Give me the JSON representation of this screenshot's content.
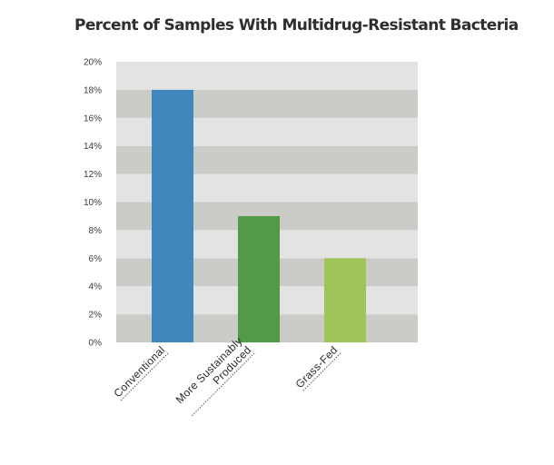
{
  "chart_data": {
    "type": "bar",
    "title": "Percent of Samples With Multidrug-Resistant Bacteria",
    "xlabel": "",
    "ylabel": "",
    "categories": [
      "Conventional",
      "More Sustainably Produced",
      "Grass-Fed"
    ],
    "category_lines": [
      [
        "Conventional"
      ],
      [
        "More Sustainably",
        "Produced"
      ],
      [
        "Grass-Fed"
      ]
    ],
    "values": [
      18,
      9,
      6
    ],
    "value_unit": "%",
    "ylim": [
      0,
      20
    ],
    "yticks": [
      0,
      2,
      4,
      6,
      8,
      10,
      12,
      14,
      16,
      18,
      20
    ],
    "ytick_labels": [
      "0%",
      "2%",
      "4%",
      "6%",
      "8%",
      "10%",
      "12%",
      "14%",
      "16%",
      "18%",
      "20%"
    ],
    "colors": [
      "#3f87bd",
      "#519a48",
      "#9fc55a"
    ],
    "band_colors": [
      "#e3e3e3",
      "#cbcbc8"
    ],
    "grid": true,
    "legend": "none"
  }
}
